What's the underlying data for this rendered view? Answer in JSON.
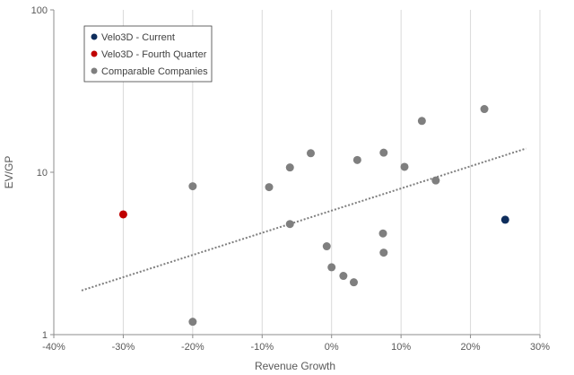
{
  "chart_data": {
    "type": "scatter",
    "title": "",
    "xlabel": "Revenue Growth",
    "ylabel": "EV/GP",
    "xlim": [
      -0.4,
      0.3
    ],
    "ylim": [
      1,
      100
    ],
    "yscale": "log",
    "grid": "vertical",
    "legend_position": "top-left",
    "x_ticks": [
      {
        "value": -0.4,
        "label": "-40%"
      },
      {
        "value": -0.3,
        "label": "-30%"
      },
      {
        "value": -0.2,
        "label": "-20%"
      },
      {
        "value": -0.1,
        "label": "-10%"
      },
      {
        "value": 0.0,
        "label": "0%"
      },
      {
        "value": 0.1,
        "label": "10%"
      },
      {
        "value": 0.2,
        "label": "20%"
      },
      {
        "value": 0.3,
        "label": "30%"
      }
    ],
    "y_ticks": [
      {
        "value": 1,
        "label": "1"
      },
      {
        "value": 10,
        "label": "10"
      },
      {
        "value": 100,
        "label": "100"
      }
    ],
    "series": [
      {
        "name": "Velo3D - Current",
        "color": "#0e2d5c",
        "points": [
          {
            "x": 0.25,
            "y": 5.1
          }
        ]
      },
      {
        "name": "Velo3D - Fourth Quarter",
        "color": "#c00000",
        "points": [
          {
            "x": -0.3,
            "y": 5.5
          }
        ]
      },
      {
        "name": "Comparable Companies",
        "color": "#7f7f7f",
        "points": [
          {
            "x": -0.2,
            "y": 8.2
          },
          {
            "x": -0.2,
            "y": 1.2
          },
          {
            "x": -0.09,
            "y": 8.1
          },
          {
            "x": -0.06,
            "y": 10.7
          },
          {
            "x": -0.06,
            "y": 4.8
          },
          {
            "x": -0.03,
            "y": 13.1
          },
          {
            "x": -0.007,
            "y": 3.5
          },
          {
            "x": 0.0,
            "y": 2.6
          },
          {
            "x": 0.017,
            "y": 2.3
          },
          {
            "x": 0.032,
            "y": 2.1
          },
          {
            "x": 0.037,
            "y": 11.9
          },
          {
            "x": 0.074,
            "y": 4.2
          },
          {
            "x": 0.075,
            "y": 13.2
          },
          {
            "x": 0.075,
            "y": 3.2
          },
          {
            "x": 0.105,
            "y": 10.8
          },
          {
            "x": 0.13,
            "y": 20.7
          },
          {
            "x": 0.15,
            "y": 8.9
          },
          {
            "x": 0.22,
            "y": 24.5
          }
        ]
      }
    ],
    "trendline": {
      "series": "Comparable Companies",
      "style": "dotted",
      "color": "#7f7f7f",
      "points": [
        {
          "x": -0.36,
          "y": 1.87
        },
        {
          "x": 0.28,
          "y": 14.0
        }
      ]
    }
  }
}
